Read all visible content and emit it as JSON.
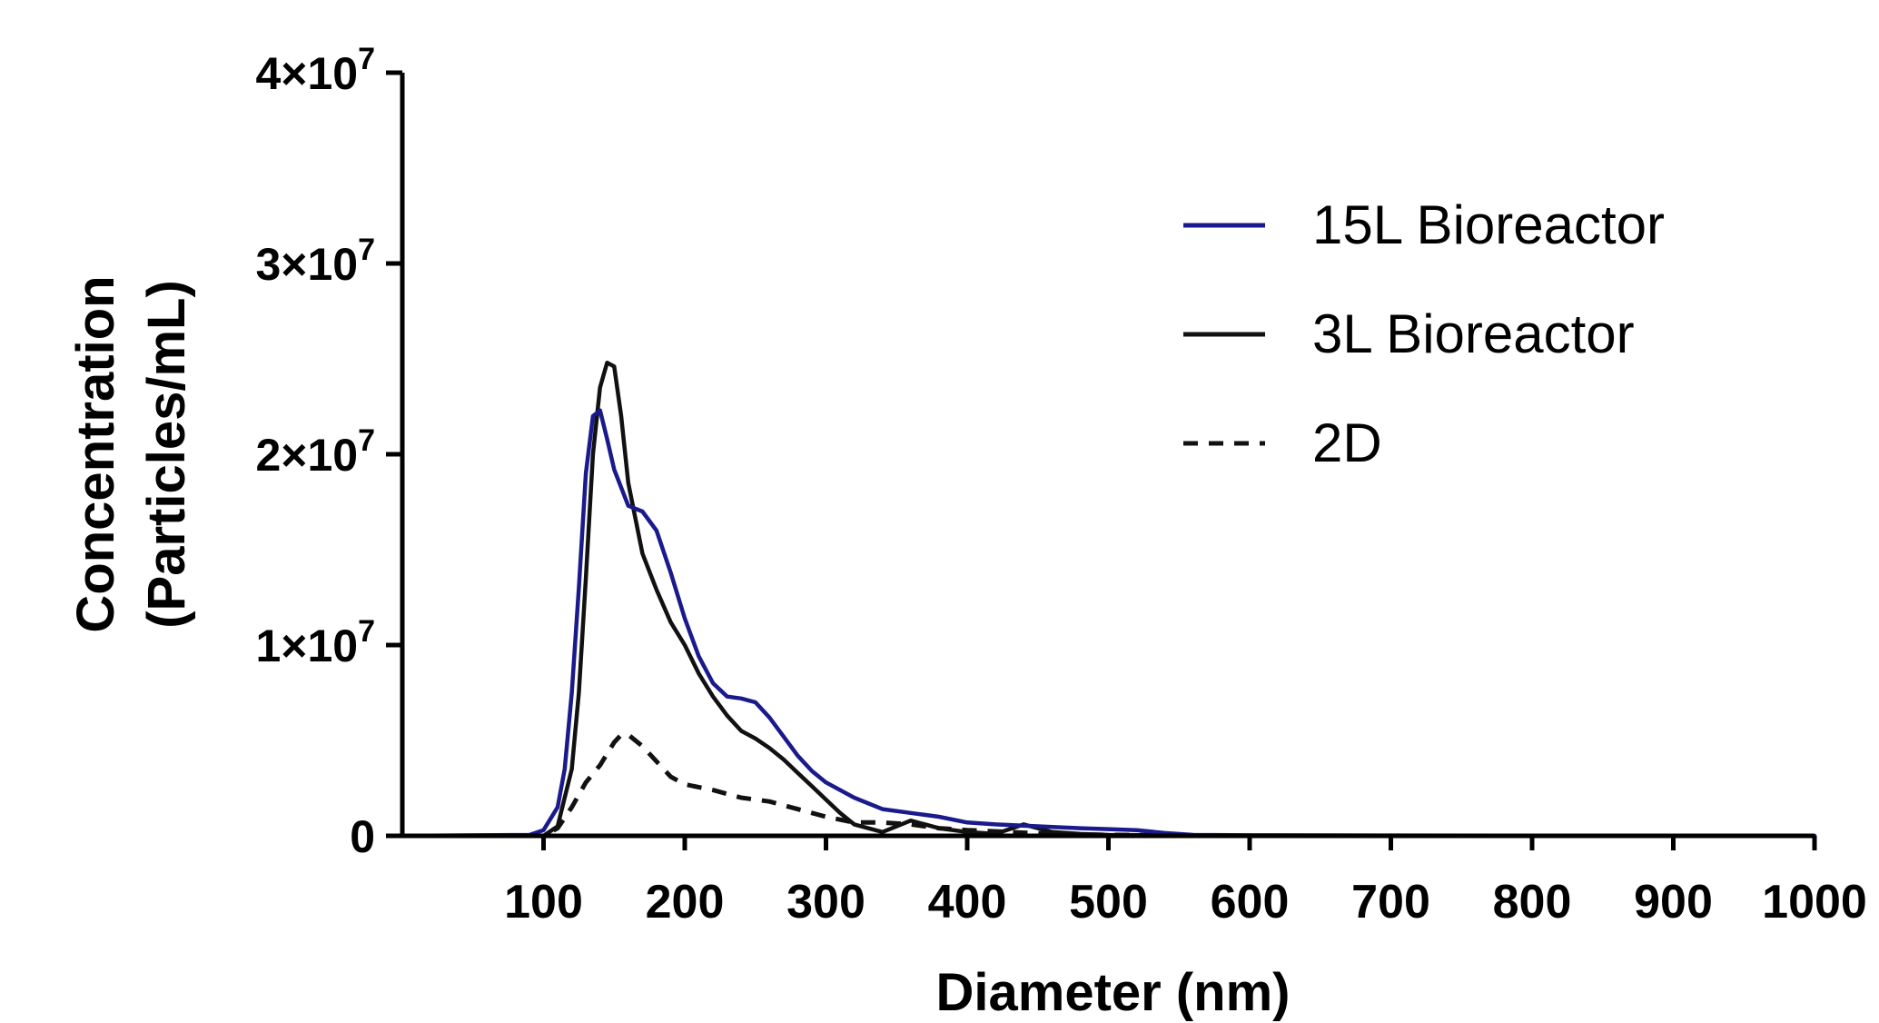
{
  "chart_data": {
    "type": "line",
    "title": "",
    "xlabel": "Diameter (nm)",
    "ylabel_lines": [
      "Concentration",
      "(Particles/mL)"
    ],
    "xlim": [
      0,
      1000
    ],
    "ylim": [
      0,
      40000000
    ],
    "x_ticks": [
      100,
      200,
      300,
      400,
      500,
      600,
      700,
      800,
      900,
      1000
    ],
    "x_tick_labels": [
      "100",
      "200",
      "300",
      "400",
      "500",
      "600",
      "700",
      "800",
      "900",
      "1000"
    ],
    "y_ticks": [
      0,
      10000000,
      20000000,
      30000000,
      40000000
    ],
    "y_tick_labels": [
      {
        "mantissa": "0",
        "exponent": ""
      },
      {
        "mantissa": "1×10",
        "exponent": "7"
      },
      {
        "mantissa": "2×10",
        "exponent": "7"
      },
      {
        "mantissa": "3×10",
        "exponent": "7"
      },
      {
        "mantissa": "4×10",
        "exponent": "7"
      }
    ],
    "grid": false,
    "legend_position": "top-right",
    "series": [
      {
        "name": "15L Bioreactor",
        "color": "#1a1a8c",
        "dash": "solid",
        "x": [
          0,
          90,
          100,
          110,
          115,
          120,
          125,
          130,
          135,
          140,
          145,
          150,
          160,
          170,
          180,
          190,
          200,
          210,
          220,
          230,
          240,
          250,
          260,
          270,
          280,
          290,
          300,
          320,
          340,
          360,
          380,
          400,
          420,
          450,
          480,
          500,
          520,
          540,
          560,
          600,
          700,
          800,
          900,
          1000
        ],
        "y": [
          0,
          50000,
          300000,
          1500000,
          3500000,
          7500000,
          13000000,
          19000000,
          22000000,
          22300000,
          20800000,
          19200000,
          17300000,
          17000000,
          16000000,
          13800000,
          11400000,
          9400000,
          8000000,
          7300000,
          7200000,
          7000000,
          6200000,
          5200000,
          4200000,
          3400000,
          2800000,
          2000000,
          1400000,
          1200000,
          1000000,
          700000,
          600000,
          500000,
          400000,
          350000,
          300000,
          150000,
          50000,
          30000,
          20000,
          10000,
          5000,
          0
        ]
      },
      {
        "name": "3L Bioreactor",
        "color": "#111111",
        "dash": "solid",
        "x": [
          0,
          100,
          110,
          120,
          125,
          130,
          135,
          140,
          145,
          150,
          155,
          160,
          170,
          180,
          190,
          200,
          210,
          220,
          230,
          240,
          250,
          260,
          270,
          280,
          290,
          300,
          310,
          320,
          340,
          360,
          380,
          400,
          420,
          440,
          460,
          480,
          500,
          550,
          600,
          1000
        ],
        "y": [
          0,
          0,
          500000,
          3500000,
          7500000,
          13500000,
          20000000,
          23500000,
          24800000,
          24600000,
          22000000,
          18500000,
          14800000,
          12900000,
          11200000,
          10000000,
          8500000,
          7300000,
          6300000,
          5500000,
          5100000,
          4600000,
          4000000,
          3300000,
          2600000,
          1900000,
          1200000,
          600000,
          200000,
          800000,
          400000,
          200000,
          100000,
          600000,
          200000,
          100000,
          50000,
          20000,
          0,
          0
        ]
      },
      {
        "name": "2D",
        "color": "#111111",
        "dash": "dashed",
        "x": [
          0,
          100,
          110,
          120,
          130,
          140,
          150,
          155,
          160,
          170,
          180,
          190,
          200,
          220,
          240,
          260,
          280,
          300,
          320,
          340,
          360,
          380,
          400,
          430,
          460,
          500,
          600,
          1000
        ],
        "y": [
          0,
          0,
          400000,
          1500000,
          2800000,
          3700000,
          4900000,
          5300000,
          5300000,
          4700000,
          3900000,
          3100000,
          2700000,
          2400000,
          2000000,
          1800000,
          1400000,
          1000000,
          700000,
          700000,
          600000,
          400000,
          300000,
          200000,
          100000,
          50000,
          0,
          0
        ]
      }
    ]
  }
}
